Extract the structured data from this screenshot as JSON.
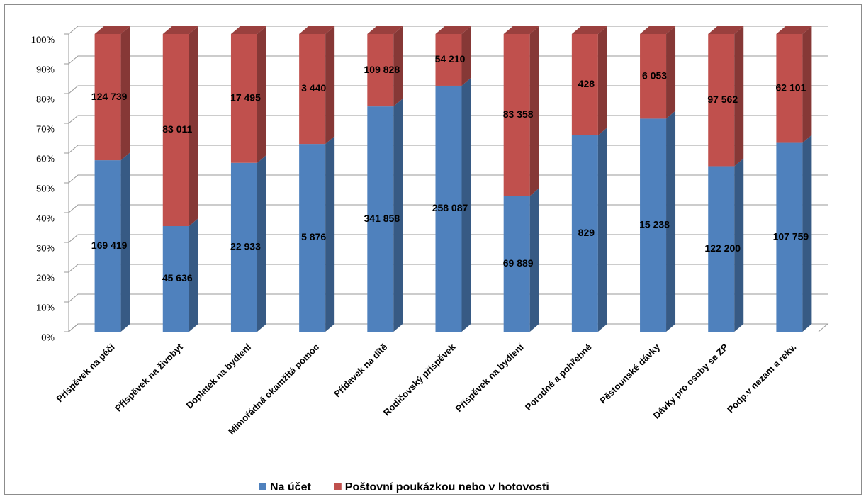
{
  "chart_data": {
    "type": "bar",
    "stacking": "percent",
    "categories": [
      "Příspěvek na péči",
      "Příspěvek na živobyt",
      "Doplatek na bydlení",
      "Mimořádná okamžitá pomoc",
      "Přídavek na dítě",
      "Rodičovský příspěvek",
      "Příspěvek na bydlení",
      "Porodné a pohřebné",
      "Pěstounské dávky",
      "Dávky pro osoby se ZP",
      "Podp.v nezam a rekv."
    ],
    "series": [
      {
        "name": "Na účet",
        "color": "#4f81bd",
        "values": [
          169419,
          45636,
          22933,
          5876,
          341858,
          258087,
          69889,
          829,
          15238,
          122200,
          107759
        ],
        "value_labels": [
          "169 419",
          "45 636",
          "22 933",
          "5 876",
          "341 858",
          "258 087",
          "69 889",
          "829",
          "15 238",
          "122 200",
          "107 759"
        ]
      },
      {
        "name": "Poštovní poukázkou nebo v hotovosti",
        "color": "#c0504d",
        "values": [
          124739,
          83011,
          17495,
          3440,
          109828,
          54210,
          83358,
          428,
          6053,
          97562,
          62101
        ],
        "value_labels": [
          "124 739",
          "83 011",
          "17 495",
          "3 440",
          "109 828",
          "54 210",
          "83 358",
          "428",
          "6 053",
          "97 562",
          "62 101"
        ]
      }
    ],
    "ylim": [
      0,
      100
    ],
    "yticks": [
      {
        "value": 0,
        "label": "0%"
      },
      {
        "value": 10,
        "label": "10%"
      },
      {
        "value": 20,
        "label": "20%"
      },
      {
        "value": 30,
        "label": "30%"
      },
      {
        "value": 40,
        "label": "40%"
      },
      {
        "value": 50,
        "label": "50%"
      },
      {
        "value": 60,
        "label": "60%"
      },
      {
        "value": 70,
        "label": "70%"
      },
      {
        "value": 80,
        "label": "80%"
      },
      {
        "value": 90,
        "label": "90%"
      },
      {
        "value": 100,
        "label": "100%"
      }
    ],
    "grid": true
  }
}
